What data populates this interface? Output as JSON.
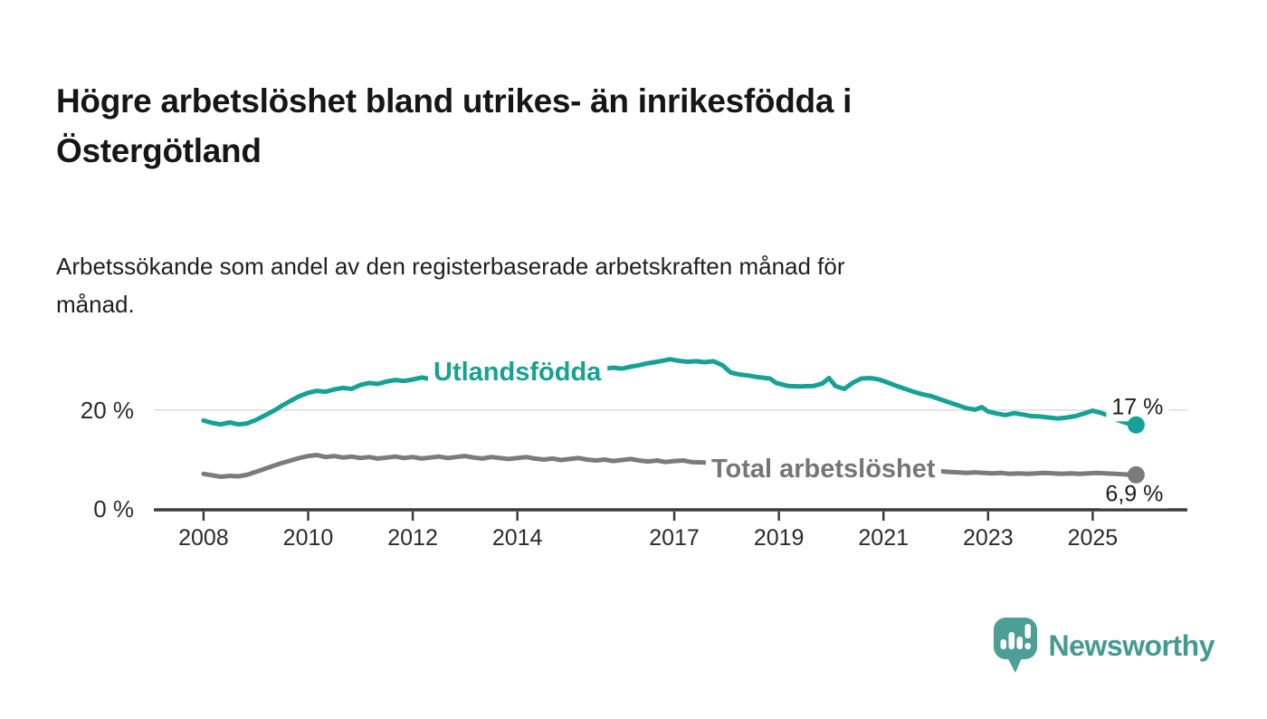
{
  "header": {
    "title": "Högre arbetslöshet bland utrikes- än inrikesfödda i\nÖstergötland",
    "subtitle": "Arbetssökande som andel av den registerbaserade arbetskraften månad för\nmånad."
  },
  "chart_data": {
    "type": "line",
    "unit": "%",
    "xlim": [
      2007.05,
      2026.81
    ],
    "ylim": [
      0,
      31.9
    ],
    "grid": "single horizontal gridline at 20 %",
    "y_gridlines": [
      20
    ],
    "gridline_color": "#dcdcdc",
    "axis_color": "#3b3b3b",
    "x_ticks": [
      {
        "value": 2008,
        "label": "2008"
      },
      {
        "value": 2010,
        "label": "2010"
      },
      {
        "value": 2012,
        "label": "2012"
      },
      {
        "value": 2014,
        "label": "2014"
      },
      {
        "value": 2017,
        "label": "2017"
      },
      {
        "value": 2019,
        "label": "2019"
      },
      {
        "value": 2021,
        "label": "2021"
      },
      {
        "value": 2023,
        "label": "2023"
      },
      {
        "value": 2025,
        "label": "2025"
      }
    ],
    "y_ticks": [
      {
        "value": 0,
        "label": "0 %"
      },
      {
        "value": 20,
        "label": "20 %"
      }
    ],
    "series": [
      {
        "name": "Utlandsfödda",
        "color": "#15a295",
        "label_color": "#15a295",
        "label": {
          "x": 2014.0,
          "y": 27.9
        },
        "end_label": {
          "text": "17 %",
          "position": "above"
        },
        "end_value": 17.0,
        "points": [
          [
            2008.0,
            17.9
          ],
          [
            2008.17,
            17.4
          ],
          [
            2008.33,
            17.1
          ],
          [
            2008.5,
            17.5
          ],
          [
            2008.67,
            17.1
          ],
          [
            2008.83,
            17.3
          ],
          [
            2009.0,
            18.0
          ],
          [
            2009.17,
            18.9
          ],
          [
            2009.33,
            19.8
          ],
          [
            2009.5,
            20.9
          ],
          [
            2009.67,
            21.9
          ],
          [
            2009.83,
            22.8
          ],
          [
            2010.0,
            23.5
          ],
          [
            2010.17,
            23.9
          ],
          [
            2010.33,
            23.7
          ],
          [
            2010.5,
            24.2
          ],
          [
            2010.67,
            24.5
          ],
          [
            2010.83,
            24.3
          ],
          [
            2011.0,
            25.1
          ],
          [
            2011.17,
            25.5
          ],
          [
            2011.33,
            25.3
          ],
          [
            2011.5,
            25.8
          ],
          [
            2011.67,
            26.1
          ],
          [
            2011.83,
            25.9
          ],
          [
            2012.0,
            26.2
          ],
          [
            2012.17,
            26.6
          ],
          [
            2012.33,
            26.3
          ],
          [
            2012.67,
            26.7
          ],
          [
            2013.0,
            27.0
          ],
          [
            2013.33,
            27.2
          ],
          [
            2013.67,
            27.4
          ],
          [
            2014.0,
            27.6
          ],
          [
            2014.33,
            27.8
          ],
          [
            2014.67,
            28.0
          ],
          [
            2015.0,
            28.1
          ],
          [
            2015.33,
            28.2
          ],
          [
            2015.67,
            28.4
          ],
          [
            2015.83,
            28.6
          ],
          [
            2016.0,
            28.4
          ],
          [
            2016.17,
            28.8
          ],
          [
            2016.33,
            29.1
          ],
          [
            2016.5,
            29.5
          ],
          [
            2016.67,
            29.8
          ],
          [
            2016.83,
            30.1
          ],
          [
            2016.92,
            30.3
          ],
          [
            2017.08,
            30.0
          ],
          [
            2017.25,
            29.8
          ],
          [
            2017.42,
            29.9
          ],
          [
            2017.58,
            29.7
          ],
          [
            2017.75,
            29.9
          ],
          [
            2017.92,
            29.1
          ],
          [
            2018.08,
            27.6
          ],
          [
            2018.25,
            27.2
          ],
          [
            2018.42,
            27.0
          ],
          [
            2018.58,
            26.7
          ],
          [
            2018.83,
            26.4
          ],
          [
            2018.95,
            25.5
          ],
          [
            2019.17,
            24.9
          ],
          [
            2019.42,
            24.8
          ],
          [
            2019.67,
            24.9
          ],
          [
            2019.83,
            25.4
          ],
          [
            2019.96,
            26.5
          ],
          [
            2020.08,
            24.9
          ],
          [
            2020.25,
            24.3
          ],
          [
            2020.42,
            25.6
          ],
          [
            2020.58,
            26.4
          ],
          [
            2020.75,
            26.5
          ],
          [
            2020.92,
            26.2
          ],
          [
            2021.08,
            25.6
          ],
          [
            2021.25,
            24.9
          ],
          [
            2021.42,
            24.3
          ],
          [
            2021.58,
            23.7
          ],
          [
            2021.75,
            23.2
          ],
          [
            2021.92,
            22.8
          ],
          [
            2022.08,
            22.2
          ],
          [
            2022.25,
            21.6
          ],
          [
            2022.42,
            21.0
          ],
          [
            2022.58,
            20.4
          ],
          [
            2022.75,
            20.1
          ],
          [
            2022.88,
            20.6
          ],
          [
            2023.0,
            19.7
          ],
          [
            2023.17,
            19.3
          ],
          [
            2023.33,
            19.0
          ],
          [
            2023.5,
            19.4
          ],
          [
            2023.67,
            19.1
          ],
          [
            2023.83,
            18.8
          ],
          [
            2024.0,
            18.7
          ],
          [
            2024.17,
            18.5
          ],
          [
            2024.33,
            18.3
          ],
          [
            2024.5,
            18.5
          ],
          [
            2024.67,
            18.8
          ],
          [
            2024.83,
            19.3
          ],
          [
            2025.0,
            19.9
          ],
          [
            2025.17,
            19.4
          ],
          [
            2025.33,
            18.8
          ],
          [
            2025.5,
            17.9
          ],
          [
            2025.67,
            17.3
          ],
          [
            2025.83,
            17.0
          ]
        ]
      },
      {
        "name": "Total arbetslöshet",
        "color": "#7b7b7b",
        "label_color": "#757575",
        "label": {
          "x": 2019.85,
          "y": 8.25
        },
        "end_label": {
          "text": "6,9 %",
          "position": "below"
        },
        "end_value": 6.9,
        "points": [
          [
            2008.0,
            7.1
          ],
          [
            2008.17,
            6.8
          ],
          [
            2008.33,
            6.5
          ],
          [
            2008.5,
            6.7
          ],
          [
            2008.67,
            6.6
          ],
          [
            2008.83,
            6.9
          ],
          [
            2009.0,
            7.5
          ],
          [
            2009.17,
            8.1
          ],
          [
            2009.33,
            8.7
          ],
          [
            2009.5,
            9.3
          ],
          [
            2009.67,
            9.8
          ],
          [
            2009.83,
            10.3
          ],
          [
            2010.0,
            10.7
          ],
          [
            2010.17,
            10.9
          ],
          [
            2010.33,
            10.5
          ],
          [
            2010.5,
            10.7
          ],
          [
            2010.67,
            10.4
          ],
          [
            2010.83,
            10.6
          ],
          [
            2011.0,
            10.3
          ],
          [
            2011.17,
            10.5
          ],
          [
            2011.33,
            10.2
          ],
          [
            2011.5,
            10.4
          ],
          [
            2011.67,
            10.6
          ],
          [
            2011.83,
            10.3
          ],
          [
            2012.0,
            10.5
          ],
          [
            2012.17,
            10.2
          ],
          [
            2012.33,
            10.4
          ],
          [
            2012.5,
            10.6
          ],
          [
            2012.67,
            10.3
          ],
          [
            2012.83,
            10.5
          ],
          [
            2013.0,
            10.7
          ],
          [
            2013.17,
            10.4
          ],
          [
            2013.33,
            10.2
          ],
          [
            2013.5,
            10.5
          ],
          [
            2013.67,
            10.3
          ],
          [
            2013.83,
            10.1
          ],
          [
            2014.0,
            10.3
          ],
          [
            2014.17,
            10.5
          ],
          [
            2014.33,
            10.2
          ],
          [
            2014.5,
            10.0
          ],
          [
            2014.67,
            10.2
          ],
          [
            2014.83,
            9.9
          ],
          [
            2015.0,
            10.1
          ],
          [
            2015.17,
            10.3
          ],
          [
            2015.33,
            10.0
          ],
          [
            2015.5,
            9.8
          ],
          [
            2015.67,
            10.0
          ],
          [
            2015.83,
            9.7
          ],
          [
            2016.0,
            9.9
          ],
          [
            2016.17,
            10.1
          ],
          [
            2016.33,
            9.8
          ],
          [
            2016.5,
            9.6
          ],
          [
            2016.67,
            9.8
          ],
          [
            2016.83,
            9.5
          ],
          [
            2017.0,
            9.7
          ],
          [
            2017.17,
            9.8
          ],
          [
            2017.33,
            9.5
          ],
          [
            2017.58,
            9.4
          ],
          [
            2018.0,
            9.2
          ],
          [
            2018.5,
            9.0
          ],
          [
            2019.0,
            8.7
          ],
          [
            2019.5,
            8.5
          ],
          [
            2020.0,
            8.9
          ],
          [
            2020.42,
            9.3
          ],
          [
            2020.83,
            9.0
          ],
          [
            2021.25,
            8.5
          ],
          [
            2021.67,
            8.0
          ],
          [
            2022.0,
            7.7
          ],
          [
            2022.25,
            7.5
          ],
          [
            2022.42,
            7.4
          ],
          [
            2022.58,
            7.3
          ],
          [
            2022.75,
            7.4
          ],
          [
            2022.92,
            7.3
          ],
          [
            2023.08,
            7.2
          ],
          [
            2023.25,
            7.3
          ],
          [
            2023.42,
            7.1
          ],
          [
            2023.58,
            7.2
          ],
          [
            2023.75,
            7.1
          ],
          [
            2023.92,
            7.2
          ],
          [
            2024.08,
            7.3
          ],
          [
            2024.25,
            7.2
          ],
          [
            2024.42,
            7.1
          ],
          [
            2024.58,
            7.2
          ],
          [
            2024.75,
            7.1
          ],
          [
            2024.92,
            7.2
          ],
          [
            2025.08,
            7.3
          ],
          [
            2025.25,
            7.2
          ],
          [
            2025.42,
            7.1
          ],
          [
            2025.58,
            7.0
          ],
          [
            2025.75,
            6.9
          ],
          [
            2025.83,
            6.9
          ]
        ]
      }
    ]
  },
  "branding": {
    "logo_text": "Newsworthy",
    "logo_color": "#449a92",
    "logo_icon": "speech-bubble-bar-chart-icon"
  }
}
